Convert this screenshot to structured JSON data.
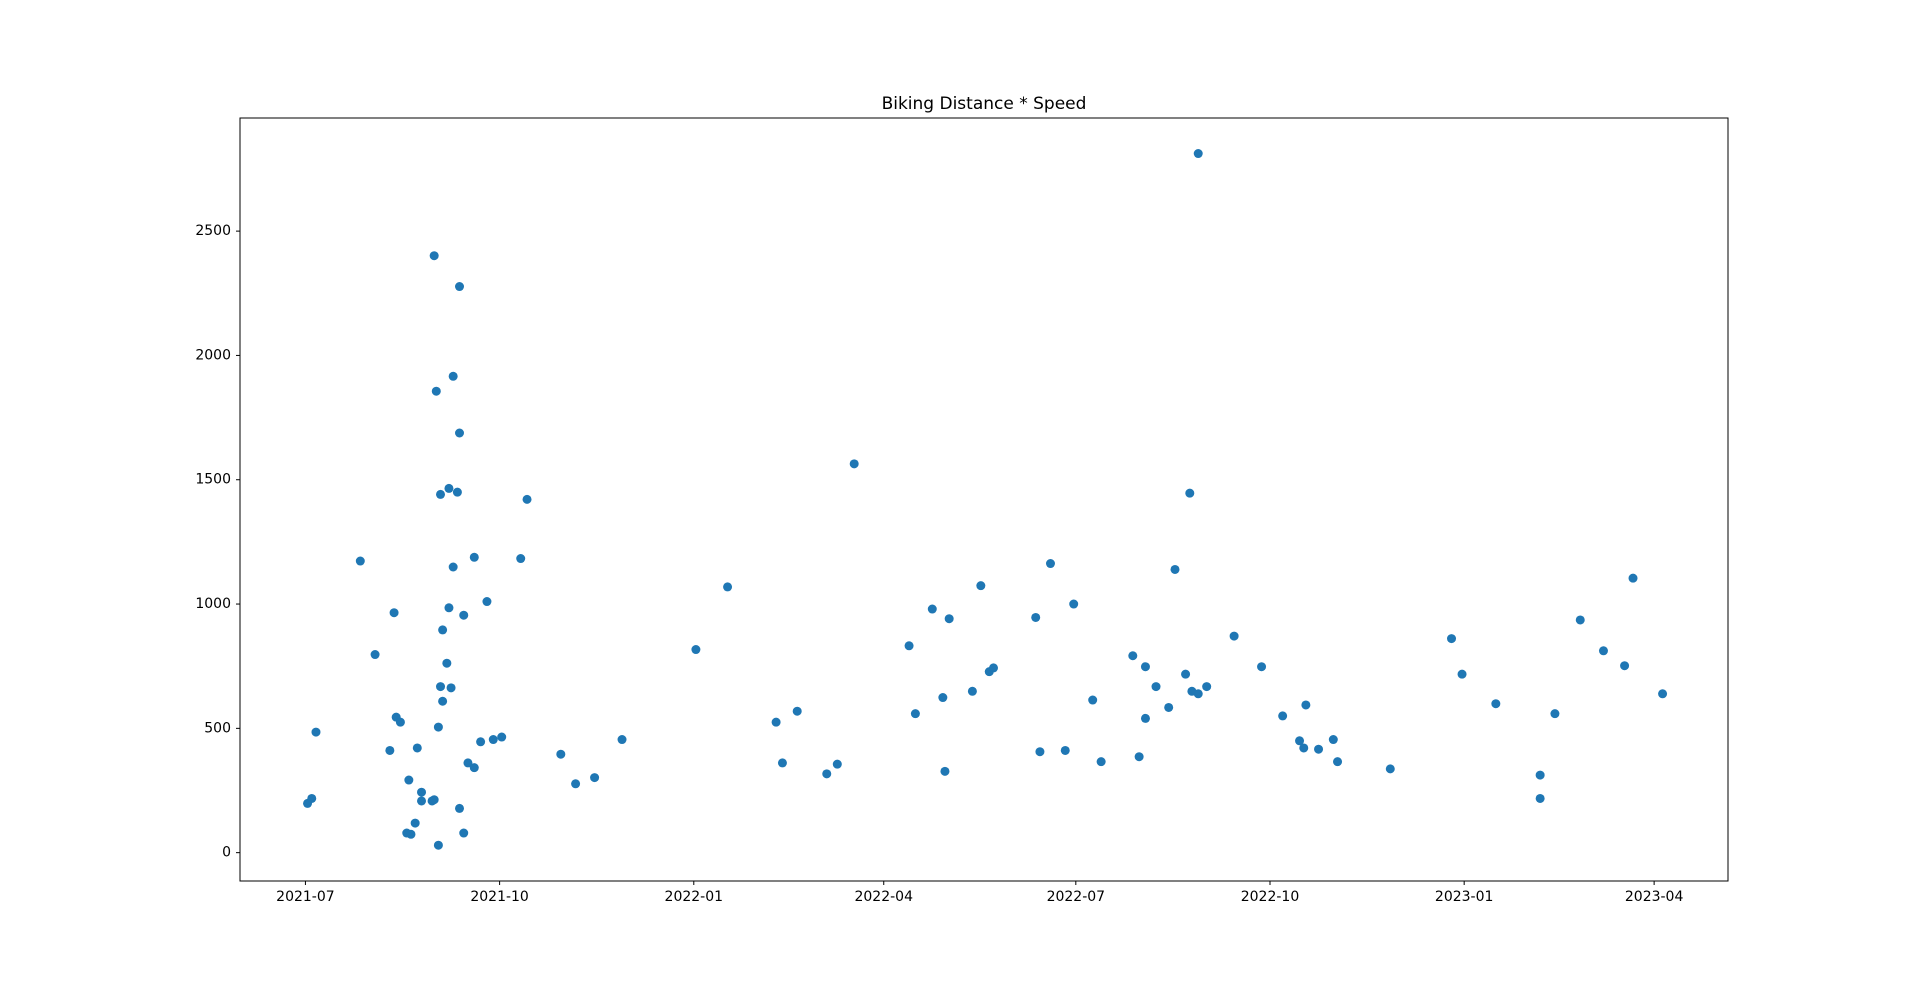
{
  "chart_data": {
    "type": "scatter",
    "title": "Biking Distance * Speed",
    "color": "#1f77b4",
    "x": [
      "2021-07-02",
      "2021-07-04",
      "2021-07-06",
      "2021-07-27",
      "2021-08-03",
      "2021-08-10",
      "2021-08-12",
      "2021-08-13",
      "2021-08-15",
      "2021-08-19",
      "2021-08-18",
      "2021-08-20",
      "2021-08-23",
      "2021-08-22",
      "2021-08-25",
      "2021-08-25",
      "2021-08-30",
      "2021-08-31",
      "2021-08-31",
      "2021-09-01",
      "2021-09-02",
      "2021-09-02",
      "2021-09-03",
      "2021-09-03",
      "2021-09-04",
      "2021-09-04",
      "2021-09-06",
      "2021-09-07",
      "2021-09-07",
      "2021-09-08",
      "2021-09-09",
      "2021-09-09",
      "2021-09-11",
      "2021-09-12",
      "2021-09-12",
      "2021-09-12",
      "2021-09-14",
      "2021-09-14",
      "2021-09-16",
      "2021-09-19",
      "2021-09-19",
      "2021-09-22",
      "2021-09-25",
      "2021-09-28",
      "2021-10-02",
      "2021-10-11",
      "2021-10-14",
      "2021-10-30",
      "2021-11-06",
      "2021-11-15",
      "2021-11-28",
      "2022-01-02",
      "2022-01-17",
      "2022-02-09",
      "2022-02-12",
      "2022-02-19",
      "2022-03-05",
      "2022-03-10",
      "2022-03-18",
      "2022-04-13",
      "2022-04-16",
      "2022-04-24",
      "2022-04-29",
      "2022-04-30",
      "2022-05-02",
      "2022-05-13",
      "2022-05-17",
      "2022-05-21",
      "2022-05-23",
      "2022-06-12",
      "2022-06-14",
      "2022-06-19",
      "2022-06-26",
      "2022-06-30",
      "2022-07-09",
      "2022-07-13",
      "2022-07-28",
      "2022-07-31",
      "2022-08-03",
      "2022-08-03",
      "2022-08-08",
      "2022-08-14",
      "2022-08-17",
      "2022-08-22",
      "2022-08-24",
      "2022-08-25",
      "2022-08-28",
      "2022-08-28",
      "2022-09-01",
      "2022-09-14",
      "2022-09-27",
      "2022-10-07",
      "2022-10-15",
      "2022-10-17",
      "2022-10-18",
      "2022-10-24",
      "2022-10-31",
      "2022-11-02",
      "2022-11-27",
      "2022-12-26",
      "2022-12-31",
      "2023-01-16",
      "2023-02-06",
      "2023-02-06",
      "2023-02-13",
      "2023-02-25",
      "2023-03-08",
      "2023-03-18",
      "2023-03-22",
      "2023-04-05"
    ],
    "values": [
      198,
      218,
      485,
      1173,
      797,
      411,
      965,
      545,
      525,
      292,
      79,
      74,
      421,
      119,
      243,
      208,
      208,
      213,
      2401,
      1856,
      505,
      30,
      1441,
      668,
      896,
      609,
      762,
      1465,
      985,
      663,
      1149,
      1916,
      1450,
      2277,
      1688,
      178,
      79,
      955,
      361,
      342,
      1188,
      446,
      1010,
      455,
      465,
      1183,
      1421,
      396,
      277,
      302,
      455,
      817,
      1069,
      525,
      361,
      569,
      317,
      356,
      1564,
      832,
      559,
      980,
      624,
      327,
      941,
      649,
      1074,
      728,
      743,
      946,
      406,
      1163,
      411,
      1000,
      614,
      366,
      792,
      386,
      748,
      540,
      668,
      584,
      1139,
      718,
      1446,
      649,
      639,
      2812,
      668,
      871,
      748,
      550,
      450,
      421,
      594,
      416,
      455,
      366,
      337,
      861,
      718,
      599,
      312,
      218,
      559,
      936,
      812,
      752,
      1104,
      639
    ],
    "xlim": [
      "2021-05-31",
      "2023-05-06"
    ],
    "xticks": [
      "2021-07",
      "2021-10",
      "2022-01",
      "2022-04",
      "2022-07",
      "2022-10",
      "2023-01",
      "2023-04"
    ],
    "ylim": [
      -114,
      2955
    ],
    "yticks": [
      0,
      500,
      1000,
      1500,
      2000,
      2500
    ]
  }
}
